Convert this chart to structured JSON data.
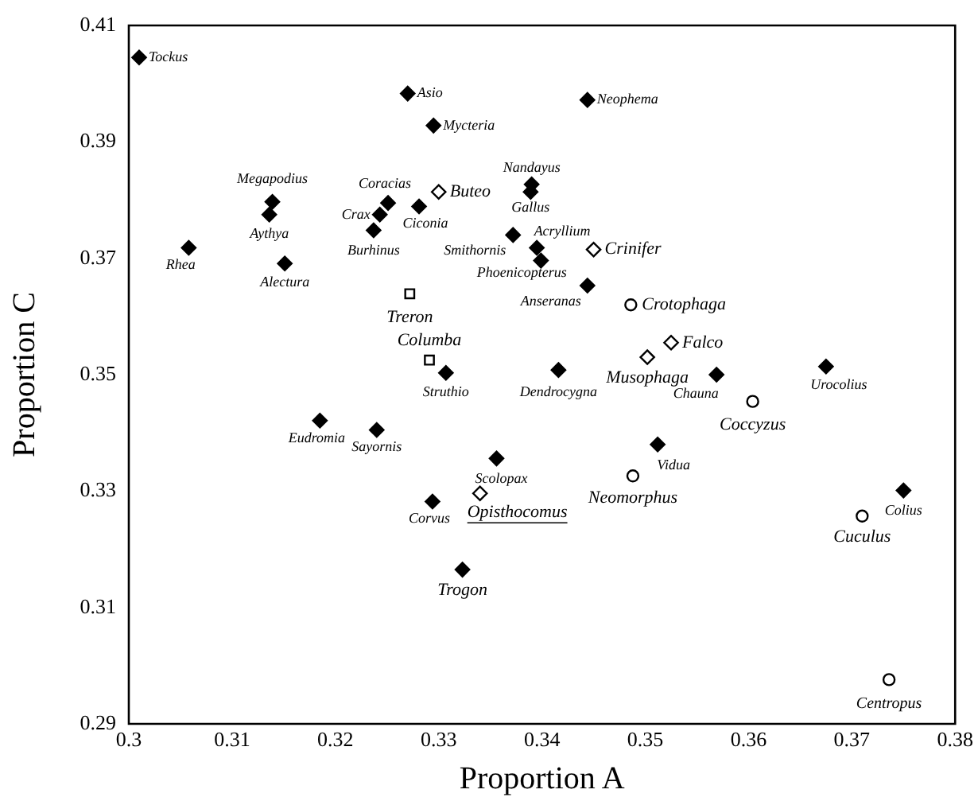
{
  "chart_data": {
    "type": "scatter",
    "xlabel": "Proportion A",
    "ylabel": "Proportion C",
    "xlim": [
      0.3,
      0.38
    ],
    "xticks": [
      0.3,
      0.31,
      0.32,
      0.33,
      0.34,
      0.35,
      0.36,
      0.37,
      0.38
    ],
    "ylim": [
      0.29,
      0.41
    ],
    "yticks": [
      0.29,
      0.31,
      0.33,
      0.35,
      0.37,
      0.39,
      0.41
    ],
    "grid": false,
    "legend": false,
    "series": [
      {
        "color": "#000000",
        "marker": "diamond",
        "x": [
          0.301,
          0.327,
          0.3295,
          0.3444,
          0.3139,
          0.3136,
          0.3058,
          0.3151,
          0.3251,
          0.3243,
          0.3237,
          0.3281,
          0.339,
          0.3389,
          0.3372,
          0.3395,
          0.3399,
          0.3444,
          0.3307,
          0.3416,
          0.3569,
          0.3675,
          0.3185,
          0.324,
          0.3356,
          0.3294,
          0.3323,
          0.3512,
          0.375
        ],
        "values": [
          0.4045,
          0.3983,
          0.3928,
          0.3972,
          0.3797,
          0.3775,
          0.3718,
          0.3691,
          0.3795,
          0.3775,
          0.3748,
          0.3789,
          0.3827,
          0.3814,
          0.374,
          0.3718,
          0.3696,
          0.3653,
          0.3503,
          0.3508,
          0.35,
          0.3514,
          0.3421,
          0.3405,
          0.3356,
          0.3282,
          0.3165,
          0.338,
          0.3301
        ]
      },
      {
        "color": "#000000",
        "marker": "diamond",
        "x": [
          0.33,
          0.345,
          0.3525,
          0.3502,
          0.334
        ],
        "values": [
          0.3814,
          0.3715,
          0.3555,
          0.353,
          0.3296
        ]
      },
      {
        "color": "#000000",
        "marker": "circle",
        "x": [
          0.3486,
          0.3604,
          0.3488,
          0.371,
          0.3736
        ],
        "values": [
          0.362,
          0.3454,
          0.3326,
          0.3257,
          0.2976
        ]
      },
      {
        "color": "#000000",
        "marker": "square",
        "x": [
          0.3272,
          0.3291
        ],
        "values": [
          0.3639,
          0.3525
        ]
      }
    ],
    "annotations": [
      {
        "text": "Tockus",
        "x": 0.301,
        "y": 0.4045
      },
      {
        "text": "Asio",
        "x": 0.327,
        "y": 0.3983
      },
      {
        "text": "Mycteria",
        "x": 0.3295,
        "y": 0.3928
      },
      {
        "text": "Neophema",
        "x": 0.3444,
        "y": 0.3972
      },
      {
        "text": "Megapodius",
        "x": 0.3139,
        "y": 0.3797
      },
      {
        "text": "Aythya",
        "x": 0.3136,
        "y": 0.3775
      },
      {
        "text": "Rhea",
        "x": 0.3058,
        "y": 0.3718
      },
      {
        "text": "Alectura",
        "x": 0.3151,
        "y": 0.3691
      },
      {
        "text": "Coracias",
        "x": 0.3251,
        "y": 0.3795
      },
      {
        "text": "Crax",
        "x": 0.3243,
        "y": 0.3775
      },
      {
        "text": "Burhinus",
        "x": 0.3237,
        "y": 0.3748
      },
      {
        "text": "Ciconia",
        "x": 0.3281,
        "y": 0.3789
      },
      {
        "text": "Nandayus",
        "x": 0.339,
        "y": 0.3827
      },
      {
        "text": "Gallus",
        "x": 0.3389,
        "y": 0.3814
      },
      {
        "text": "Smithornis",
        "x": 0.3372,
        "y": 0.374
      },
      {
        "text": "Acryllium",
        "x": 0.3395,
        "y": 0.3718
      },
      {
        "text": "Phoenicopterus",
        "x": 0.3399,
        "y": 0.3696
      },
      {
        "text": "Anseranas",
        "x": 0.3444,
        "y": 0.3653
      },
      {
        "text": "Struthio",
        "x": 0.3307,
        "y": 0.3503
      },
      {
        "text": "Dendrocygna",
        "x": 0.3416,
        "y": 0.3508
      },
      {
        "text": "Chauna",
        "x": 0.3569,
        "y": 0.35
      },
      {
        "text": "Urocolius",
        "x": 0.3675,
        "y": 0.3514
      },
      {
        "text": "Eudromia",
        "x": 0.3185,
        "y": 0.3421
      },
      {
        "text": "Sayornis",
        "x": 0.324,
        "y": 0.3405
      },
      {
        "text": "Scolopax",
        "x": 0.3356,
        "y": 0.3356
      },
      {
        "text": "Corvus",
        "x": 0.3294,
        "y": 0.3282
      },
      {
        "text": "Trogon",
        "x": 0.3323,
        "y": 0.3165
      },
      {
        "text": "Vidua",
        "x": 0.3512,
        "y": 0.338
      },
      {
        "text": "Colius",
        "x": 0.375,
        "y": 0.3301
      },
      {
        "text": "Buteo",
        "x": 0.33,
        "y": 0.3814
      },
      {
        "text": "Crinifer",
        "x": 0.345,
        "y": 0.3715
      },
      {
        "text": "Falco",
        "x": 0.3525,
        "y": 0.3555
      },
      {
        "text": "Musophaga",
        "x": 0.3502,
        "y": 0.353
      },
      {
        "text": "Opisthocomus",
        "x": 0.334,
        "y": 0.3296
      },
      {
        "text": "Crotophaga",
        "x": 0.3486,
        "y": 0.362
      },
      {
        "text": "Coccyzus",
        "x": 0.3604,
        "y": 0.3454
      },
      {
        "text": "Neomorphus",
        "x": 0.3488,
        "y": 0.3326
      },
      {
        "text": "Cuculus",
        "x": 0.371,
        "y": 0.3257
      },
      {
        "text": "Centropus",
        "x": 0.3736,
        "y": 0.2976
      },
      {
        "text": "Treron",
        "x": 0.3272,
        "y": 0.3639
      },
      {
        "text": "Columba",
        "x": 0.3291,
        "y": 0.3525
      }
    ]
  }
}
